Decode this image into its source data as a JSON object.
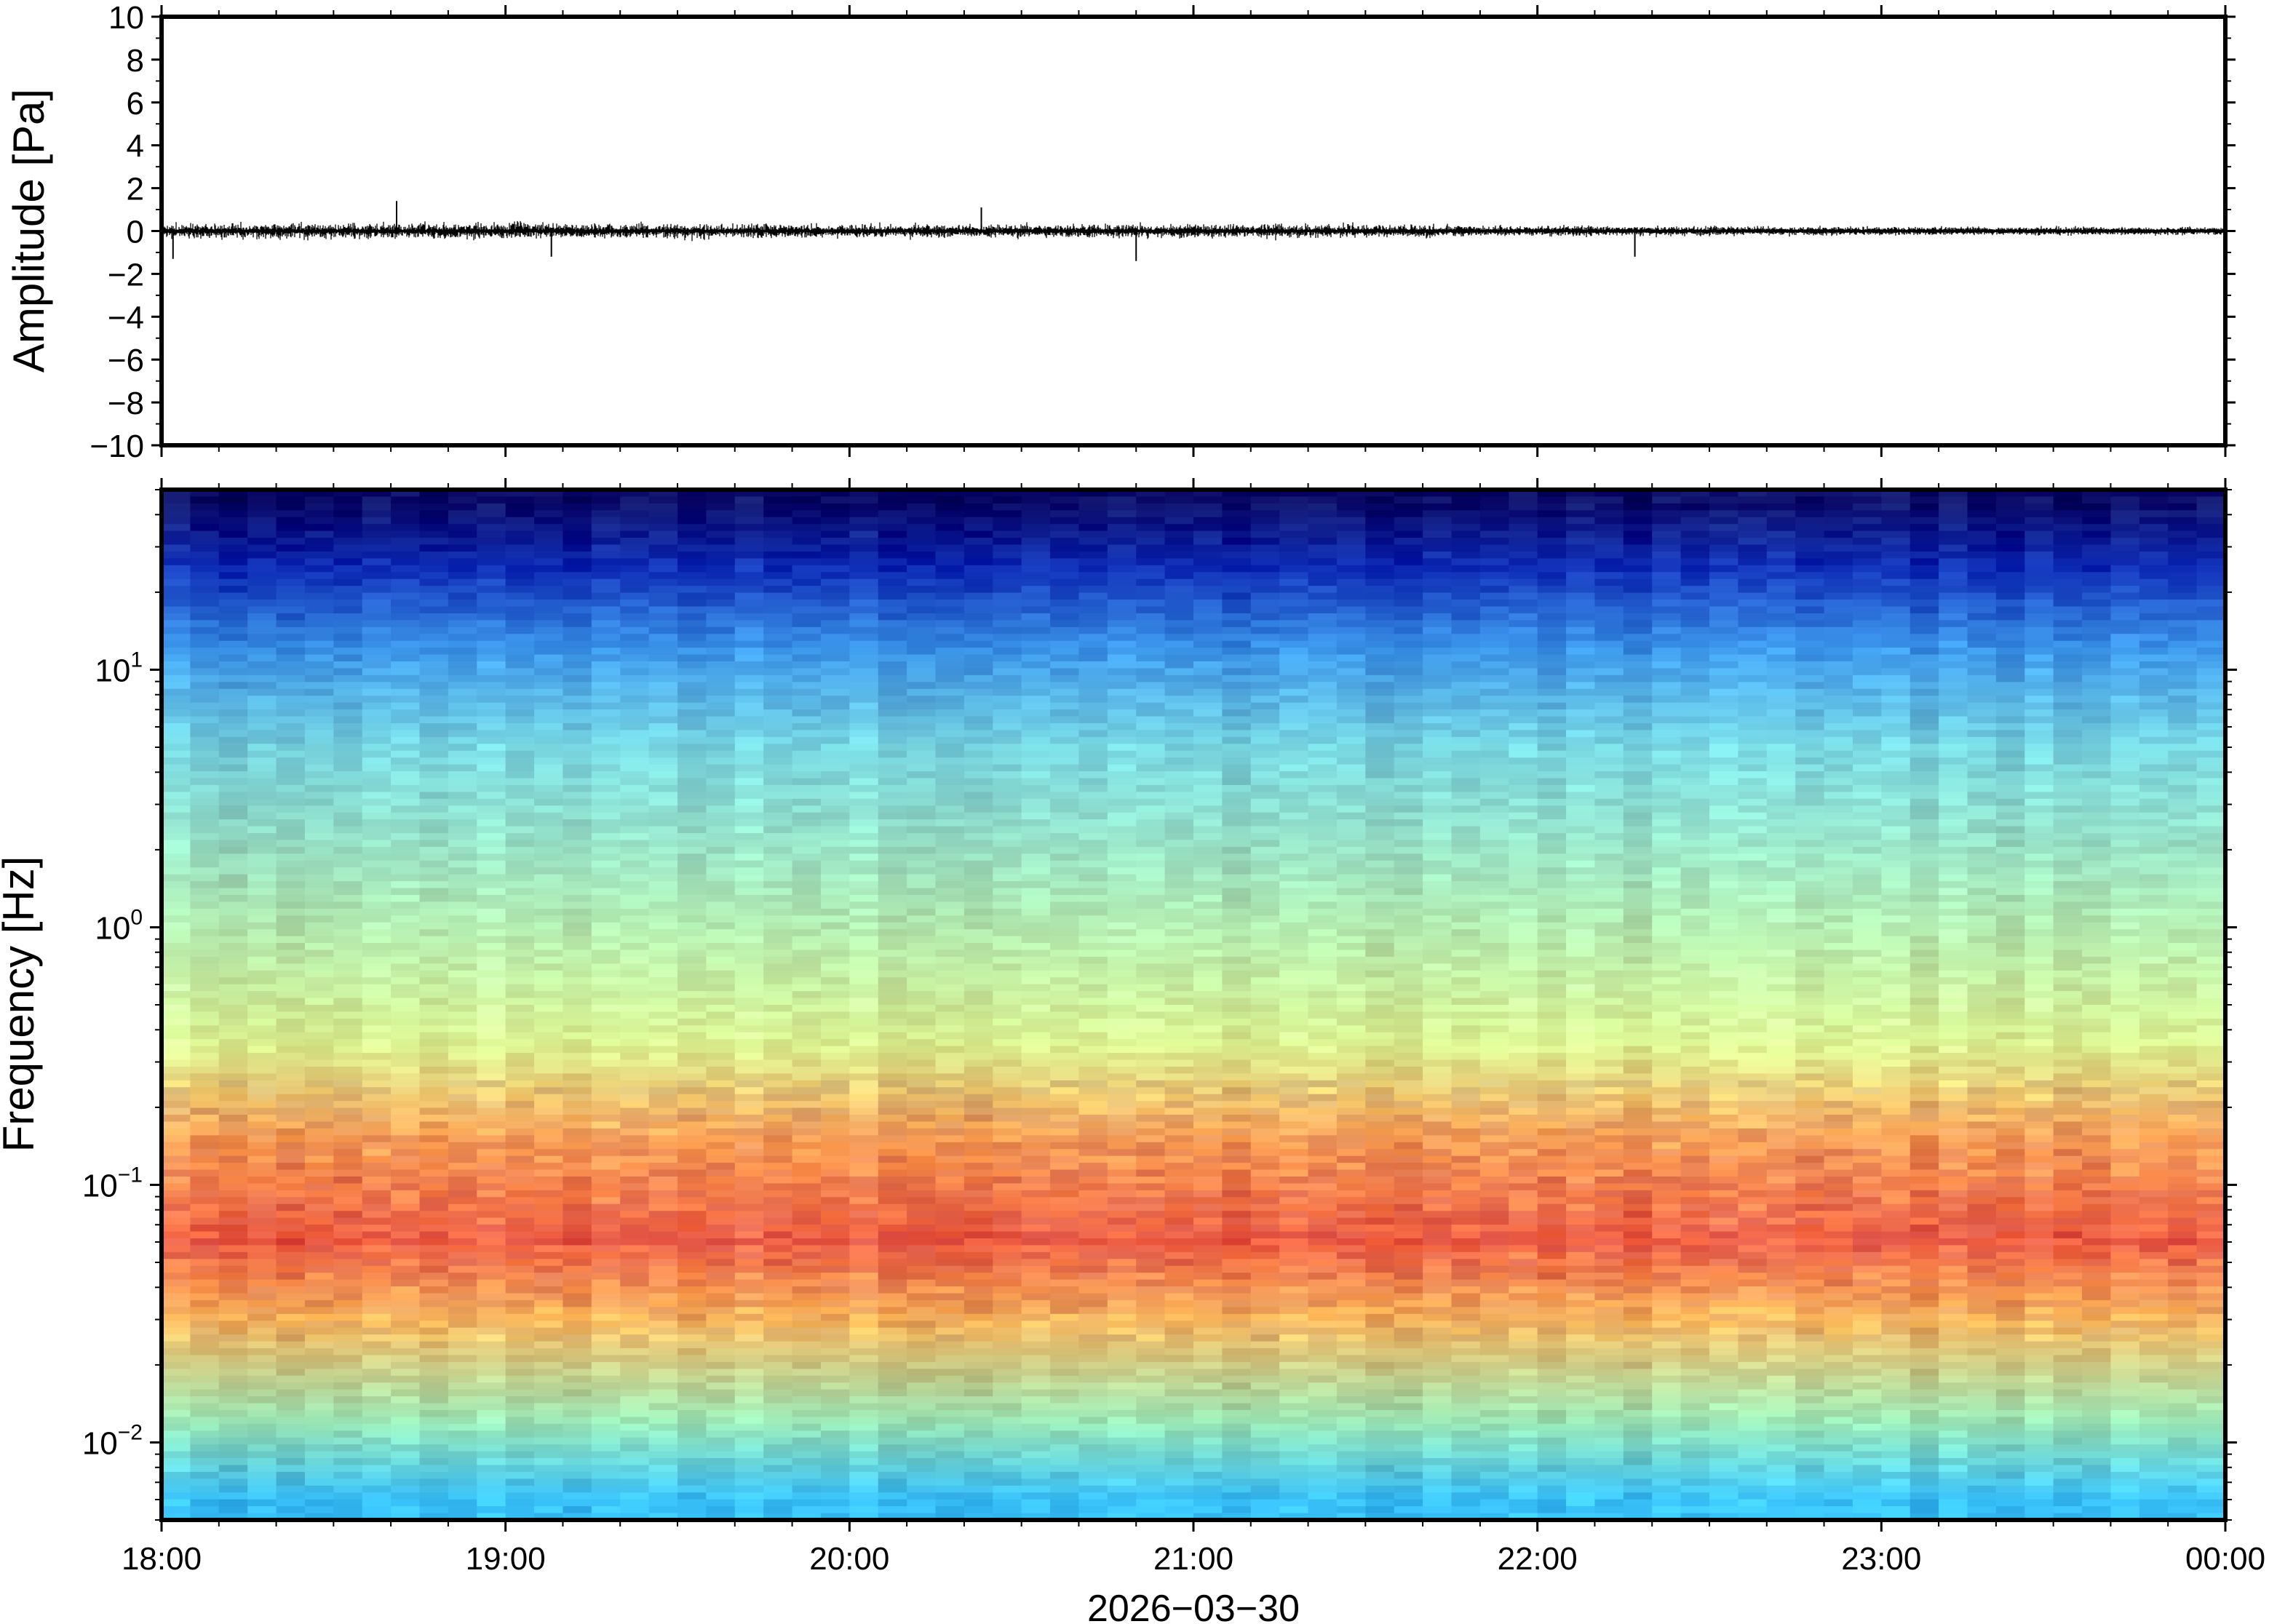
{
  "chart_data": [
    {
      "type": "line",
      "panel": "waveform",
      "ylabel": "Amplitude [Pa]",
      "ylim": [
        -10,
        10
      ],
      "yticks": [
        10,
        8,
        6,
        4,
        2,
        0,
        -2,
        -4,
        -6,
        -8,
        -10
      ],
      "ytick_labels": [
        "10",
        "8",
        "6",
        "4",
        "2",
        "0",
        "−2",
        "−4",
        "−6",
        "−8",
        "−10"
      ],
      "x_range": [
        "18:00",
        "00:00"
      ],
      "series": [
        {
          "values": "noisy pressure trace centered near 0 Pa",
          "envelope_by_hour": [
            {
              "hour": "18:00",
              "amplitude": 0.5
            },
            {
              "hour": "19:00",
              "amplitude": 0.6
            },
            {
              "hour": "20:00",
              "amplitude": 0.45
            },
            {
              "hour": "21:00",
              "amplitude": 0.5
            },
            {
              "hour": "22:00",
              "amplitude": 0.35
            },
            {
              "hour": "23:00",
              "amplitude": 0.25
            },
            {
              "hour": "00:00",
              "amplitude": 0.25
            }
          ],
          "peaks": [
            {
              "time": "18:41",
              "value": 1.4
            },
            {
              "time": "18:02",
              "value": -1.3
            },
            {
              "time": "19:08",
              "value": -1.2
            },
            {
              "time": "20:23",
              "value": 1.1
            },
            {
              "time": "20:50",
              "value": -1.4
            },
            {
              "time": "22:17",
              "value": -1.2
            }
          ]
        }
      ]
    },
    {
      "type": "heatmap",
      "panel": "spectrogram",
      "ylabel": "Frequency [Hz]",
      "xlabel": "2026−03−30",
      "yscale": "log",
      "ylim": [
        0.005,
        50
      ],
      "yticks": [
        {
          "value": 10,
          "base": "10",
          "exp": "1"
        },
        {
          "value": 1,
          "base": "10",
          "exp": "0"
        },
        {
          "value": 0.1,
          "base": "10",
          "exp": "−1"
        },
        {
          "value": 0.01,
          "base": "10",
          "exp": "−2"
        }
      ],
      "xticks": [
        "18:00",
        "19:00",
        "20:00",
        "21:00",
        "22:00",
        "23:00",
        "00:00"
      ],
      "colormap": "jet-like (dark blue = low power, red = high power)",
      "power_by_frequency": [
        {
          "freq": 0.006,
          "color": "#38c0f8"
        },
        {
          "freq": 0.012,
          "color": "#9ae6b5"
        },
        {
          "freq": 0.03,
          "color": "#f6b45d"
        },
        {
          "freq": 0.06,
          "color": "#ec5c44"
        },
        {
          "freq": 0.15,
          "color": "#f49a56"
        },
        {
          "freq": 0.35,
          "color": "#dcf392"
        },
        {
          "freq": 1.0,
          "color": "#b4ecb1"
        },
        {
          "freq": 5.0,
          "color": "#77d5e0"
        },
        {
          "freq": 12.0,
          "color": "#3a94e8"
        },
        {
          "freq": 25.0,
          "color": "#0d2ab5"
        },
        {
          "freq": 45.0,
          "color": "#090765"
        }
      ]
    }
  ]
}
